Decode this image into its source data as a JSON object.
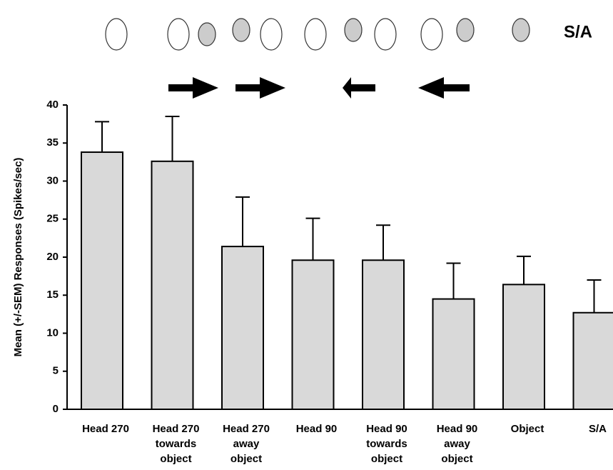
{
  "chart_data": {
    "type": "bar",
    "y_label": "Mean (+/-SEM) Responses (Spikes/sec)",
    "top_label": "S/A",
    "categories": [
      [
        "Head 270"
      ],
      [
        "Head 270",
        "towards",
        "object"
      ],
      [
        "Head 270",
        "away",
        "object"
      ],
      [
        "Head 90"
      ],
      [
        "Head 90",
        "towards",
        "object"
      ],
      [
        "Head 90",
        "away",
        "object"
      ],
      [
        "Object"
      ],
      [
        "S/A"
      ]
    ],
    "values": [
      33.8,
      32.6,
      21.4,
      19.6,
      19.6,
      14.5,
      16.4,
      12.7
    ],
    "errors": [
      4.0,
      5.9,
      6.5,
      5.5,
      4.6,
      4.7,
      3.7,
      4.3
    ],
    "color": "#d9d9d9",
    "ylim": [
      0,
      40
    ],
    "yticks": [
      0,
      5,
      10,
      15,
      20,
      25,
      30,
      35,
      40
    ]
  }
}
